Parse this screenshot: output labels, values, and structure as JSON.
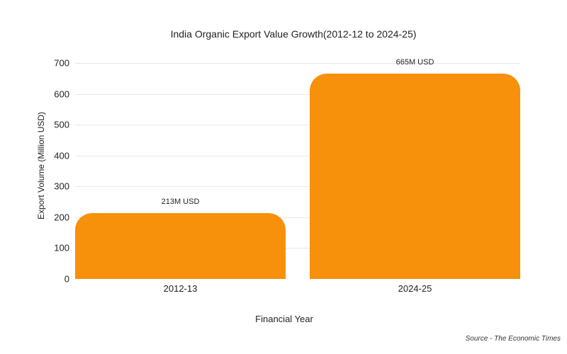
{
  "chart_data": {
    "type": "bar",
    "title": "India Organic Export Value Growth(2012-12 to 2024-25)",
    "xlabel": "Financial Year",
    "ylabel": "Export Volume (Million USD)",
    "categories": [
      "2012-13",
      "2024-25"
    ],
    "values": [
      213,
      665
    ],
    "data_labels": [
      "213M USD",
      "665M USD"
    ],
    "yticks": [
      0,
      100,
      200,
      300,
      400,
      500,
      600,
      700
    ],
    "ylim": [
      0,
      700
    ],
    "grid": true,
    "legend": null,
    "bar_color": "#f7900a",
    "source": "Source - The Economic Times"
  }
}
